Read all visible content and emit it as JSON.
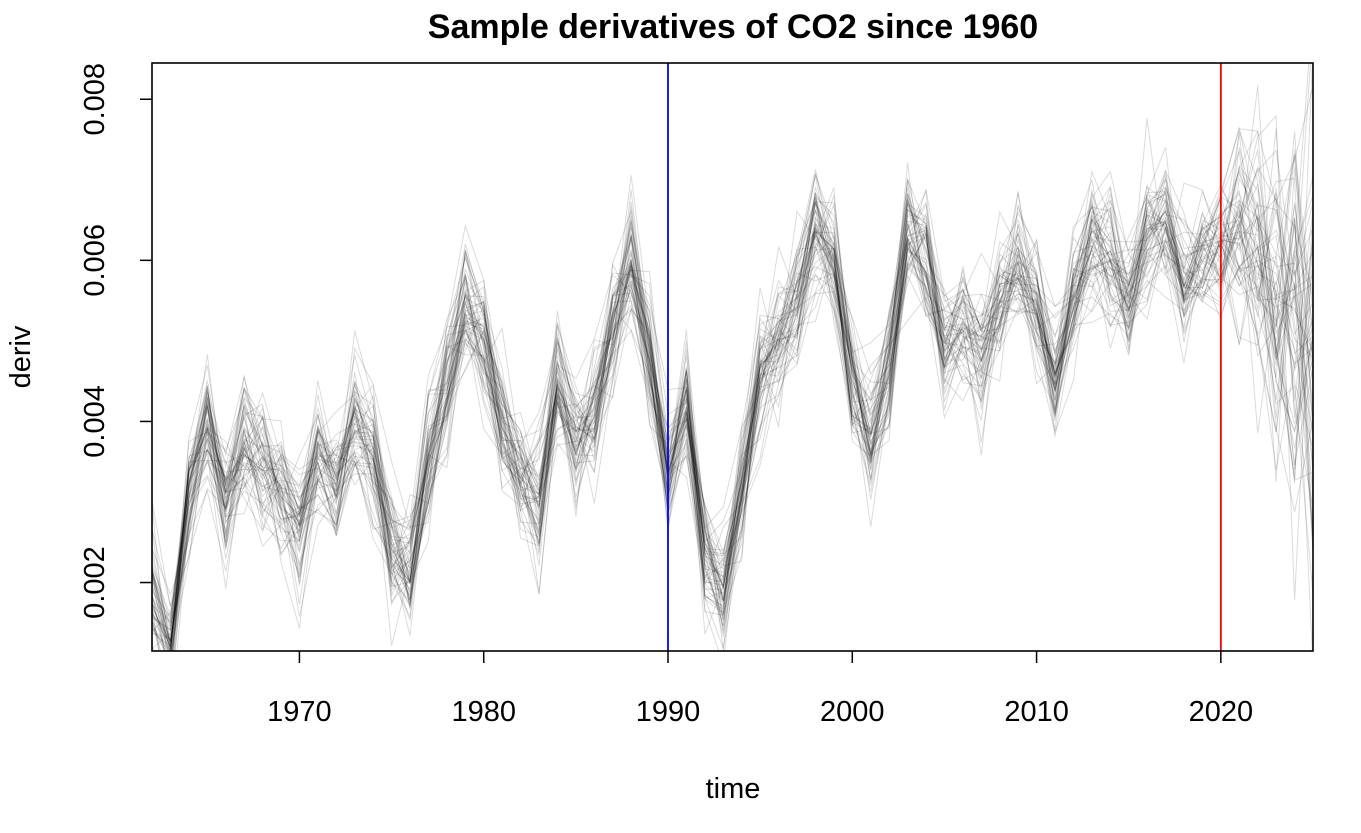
{
  "chart_data": {
    "type": "line",
    "title": "Sample derivatives of CO2 since 1960",
    "xlabel": "time",
    "ylabel": "deriv",
    "xlim": [
      1962,
      2025
    ],
    "ylim": [
      0.00115,
      0.00845
    ],
    "x_ticks": [
      1970,
      1980,
      1990,
      2000,
      2010,
      2020
    ],
    "x_tick_labels": [
      "1970",
      "1980",
      "1990",
      "2000",
      "2010",
      "2020"
    ],
    "y_ticks": [
      0.002,
      0.004,
      0.006,
      0.008
    ],
    "y_tick_labels": [
      "0.002",
      "0.004",
      "0.006",
      "0.008"
    ],
    "grid": false,
    "legend": "none",
    "sample_count": 60,
    "line_color": "#000000",
    "x": [
      1962,
      1963,
      1964,
      1965,
      1966,
      1967,
      1968,
      1969,
      1970,
      1971,
      1972,
      1973,
      1974,
      1975,
      1976,
      1977,
      1978,
      1979,
      1980,
      1981,
      1982,
      1983,
      1984,
      1985,
      1986,
      1987,
      1988,
      1989,
      1990,
      1991,
      1992,
      1993,
      1994,
      1995,
      1996,
      1997,
      1998,
      1999,
      2000,
      2001,
      2002,
      2003,
      2004,
      2005,
      2006,
      2007,
      2008,
      2009,
      2010,
      2011,
      2012,
      2013,
      2014,
      2015,
      2016,
      2017,
      2018,
      2019,
      2020,
      2021,
      2022,
      2023,
      2024,
      2025
    ],
    "mean_deriv": [
      0.0018,
      0.0012,
      0.003,
      0.0039,
      0.003,
      0.0038,
      0.0035,
      0.0031,
      0.0027,
      0.0036,
      0.0033,
      0.004,
      0.0036,
      0.0025,
      0.0022,
      0.0035,
      0.0045,
      0.0055,
      0.005,
      0.004,
      0.0033,
      0.003,
      0.0045,
      0.0038,
      0.004,
      0.0052,
      0.006,
      0.0048,
      0.0033,
      0.0042,
      0.0023,
      0.0018,
      0.0032,
      0.0046,
      0.005,
      0.0055,
      0.0063,
      0.006,
      0.0045,
      0.0038,
      0.0047,
      0.0065,
      0.006,
      0.005,
      0.0052,
      0.0048,
      0.0055,
      0.006,
      0.0054,
      0.0045,
      0.0055,
      0.0063,
      0.006,
      0.0055,
      0.0062,
      0.0065,
      0.0057,
      0.006,
      0.0062,
      0.0065,
      0.006,
      0.0055,
      0.0052,
      0.005
    ],
    "reference_lines": [
      {
        "x": 1990,
        "color": "#0000FF"
      },
      {
        "x": 2020,
        "color": "#FF0000"
      }
    ]
  }
}
